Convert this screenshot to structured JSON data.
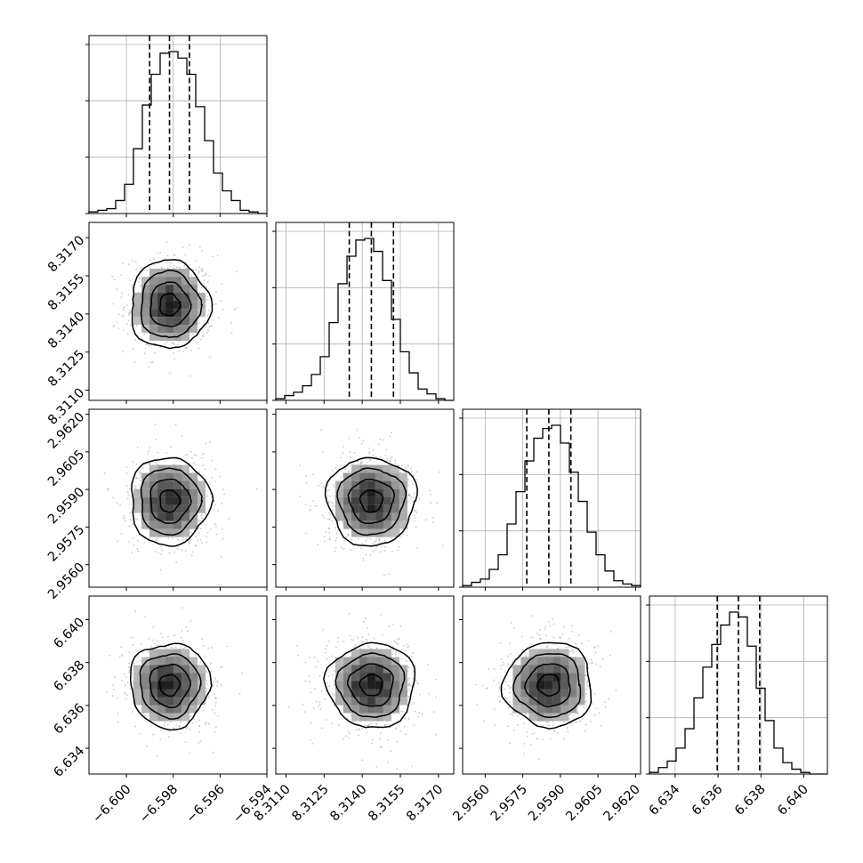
{
  "chart_data": {
    "type": "corner",
    "parameters": [
      {
        "ticks": [
          "−6.600",
          "−6.598",
          "−6.596",
          "−6.594"
        ],
        "tick_values": [
          -6.6,
          -6.598,
          -6.596,
          -6.594
        ],
        "range": [
          -6.6016,
          -6.594
        ],
        "mean": -6.59816,
        "sigma": 0.00085,
        "quantiles": [
          -6.59901,
          -6.59816,
          -6.59731
        ]
      },
      {
        "ticks": [
          "8.3110",
          "8.3125",
          "8.3140",
          "8.3155",
          "8.3170"
        ],
        "tick_values": [
          8.311,
          8.3125,
          8.314,
          8.3155,
          8.317
        ],
        "range": [
          8.3106,
          8.3176
        ],
        "mean": 8.31436,
        "sigma": 0.00087,
        "quantiles": [
          8.31349,
          8.31436,
          8.31523
        ]
      },
      {
        "ticks": [
          "2.9560",
          "2.9575",
          "2.9590",
          "2.9605",
          "2.9620"
        ],
        "tick_values": [
          2.956,
          2.9575,
          2.959,
          2.9605,
          2.962
        ],
        "range": [
          2.9551,
          2.9622
        ],
        "mean": 2.95854,
        "sigma": 0.00088,
        "quantiles": [
          2.95766,
          2.95854,
          2.95942
        ]
      },
      {
        "ticks": [
          "6.634",
          "6.636",
          "6.638",
          "6.640"
        ],
        "tick_values": [
          6.634,
          6.636,
          6.638,
          6.64
        ],
        "range": [
          6.6328,
          6.6411
        ],
        "mean": 6.63695,
        "sigma": 0.00099,
        "quantiles": [
          6.63596,
          6.63695,
          6.63794
        ]
      }
    ],
    "histograms": [
      [
        1,
        2,
        3,
        8,
        18,
        40,
        67,
        86,
        99,
        100,
        96,
        86,
        66,
        45,
        25,
        14,
        8,
        2,
        1,
        0
      ],
      [
        1,
        3,
        5,
        9,
        16,
        27,
        48,
        72,
        89,
        99,
        100,
        92,
        74,
        50,
        30,
        17,
        7,
        4,
        1,
        0
      ],
      [
        1,
        3,
        5,
        11,
        20,
        39,
        59,
        78,
        92,
        98,
        100,
        89,
        71,
        53,
        34,
        20,
        10,
        4,
        2,
        1
      ],
      [
        1,
        4,
        8,
        16,
        28,
        47,
        66,
        80,
        92,
        100,
        97,
        79,
        53,
        33,
        16,
        7,
        3,
        1,
        0,
        0
      ]
    ],
    "quantile_lines": "dashed at 16%, 50%, 84%",
    "contour_levels": 4,
    "grid": true,
    "colors": {
      "lines": "#000000",
      "points": "#888888",
      "grid": "#b0b0b0"
    }
  }
}
